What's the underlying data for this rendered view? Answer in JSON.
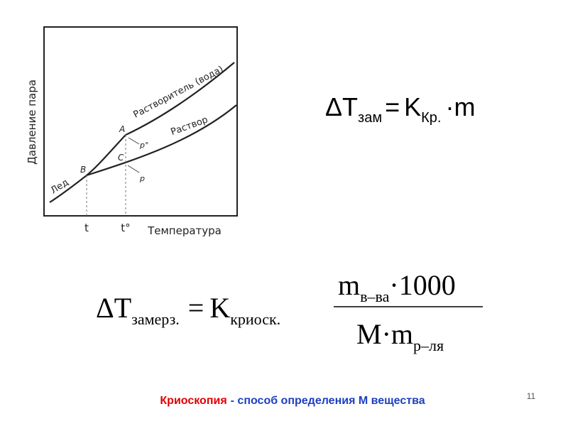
{
  "diagram": {
    "y_label": "Давление пара",
    "x_label": "Температура",
    "curves": {
      "ice": "Лед",
      "solvent": "Растворитель (вода)",
      "solution": "Раствор"
    },
    "points": {
      "a": "A",
      "b": "B",
      "c": "C",
      "p0": "p°",
      "p": "p"
    },
    "x_marks": {
      "t": "t",
      "t0": "t°"
    }
  },
  "formula_short": {
    "delta": "ΔT",
    "sub1": "зам",
    "eq": "=",
    "k": "K",
    "sub2": "Кр.",
    "tail": "·m"
  },
  "formula_full": {
    "delta": "ΔT",
    "sub1": "замерз.",
    "eq": "=",
    "k": "K",
    "sub2": "криоск.",
    "num_m": "m",
    "num_sub": "в–ва",
    "num_tail": "·1000",
    "den_m": "M·m",
    "den_sub": "р–ля"
  },
  "caption": {
    "term": "Криоскопия",
    "rest": "- способ определения М вещества"
  },
  "page_number": "11"
}
